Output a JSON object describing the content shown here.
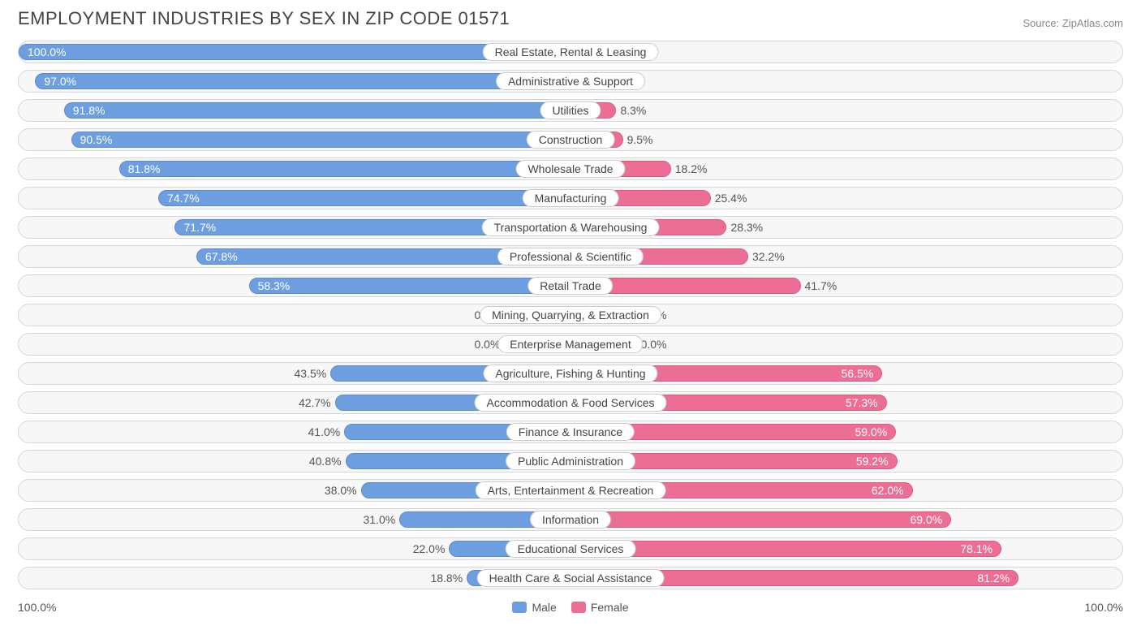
{
  "title": "EMPLOYMENT INDUSTRIES BY SEX IN ZIP CODE 01571",
  "source": "Source: ZipAtlas.com",
  "chart": {
    "type": "diverging-bar",
    "male_color": "#6c9ee0",
    "female_color": "#ec6e94",
    "track_bg": "#f7f7f7",
    "track_border": "#d6d6d6",
    "text_color": "#555555",
    "title_color": "#444444",
    "axis_left_label": "100.0%",
    "axis_right_label": "100.0%",
    "legend_male": "Male",
    "legend_female": "Female",
    "label_threshold_inside": 55,
    "rows": [
      {
        "label": "Real Estate, Rental & Leasing",
        "male": 100.0,
        "female": 0.0
      },
      {
        "label": "Administrative & Support",
        "male": 97.0,
        "female": 3.0
      },
      {
        "label": "Utilities",
        "male": 91.8,
        "female": 8.3
      },
      {
        "label": "Construction",
        "male": 90.5,
        "female": 9.5
      },
      {
        "label": "Wholesale Trade",
        "male": 81.8,
        "female": 18.2
      },
      {
        "label": "Manufacturing",
        "male": 74.7,
        "female": 25.4
      },
      {
        "label": "Transportation & Warehousing",
        "male": 71.7,
        "female": 28.3
      },
      {
        "label": "Professional & Scientific",
        "male": 67.8,
        "female": 32.2
      },
      {
        "label": "Retail Trade",
        "male": 58.3,
        "female": 41.7
      },
      {
        "label": "Mining, Quarrying, & Extraction",
        "male": 0.0,
        "female": 0.0,
        "male_stub": 12,
        "female_stub": 12
      },
      {
        "label": "Enterprise Management",
        "male": 0.0,
        "female": 0.0,
        "male_stub": 12,
        "female_stub": 12
      },
      {
        "label": "Agriculture, Fishing & Hunting",
        "male": 43.5,
        "female": 56.5
      },
      {
        "label": "Accommodation & Food Services",
        "male": 42.7,
        "female": 57.3
      },
      {
        "label": "Finance & Insurance",
        "male": 41.0,
        "female": 59.0
      },
      {
        "label": "Public Administration",
        "male": 40.8,
        "female": 59.2
      },
      {
        "label": "Arts, Entertainment & Recreation",
        "male": 38.0,
        "female": 62.0
      },
      {
        "label": "Information",
        "male": 31.0,
        "female": 69.0
      },
      {
        "label": "Educational Services",
        "male": 22.0,
        "female": 78.1
      },
      {
        "label": "Health Care & Social Assistance",
        "male": 18.8,
        "female": 81.2
      }
    ]
  }
}
